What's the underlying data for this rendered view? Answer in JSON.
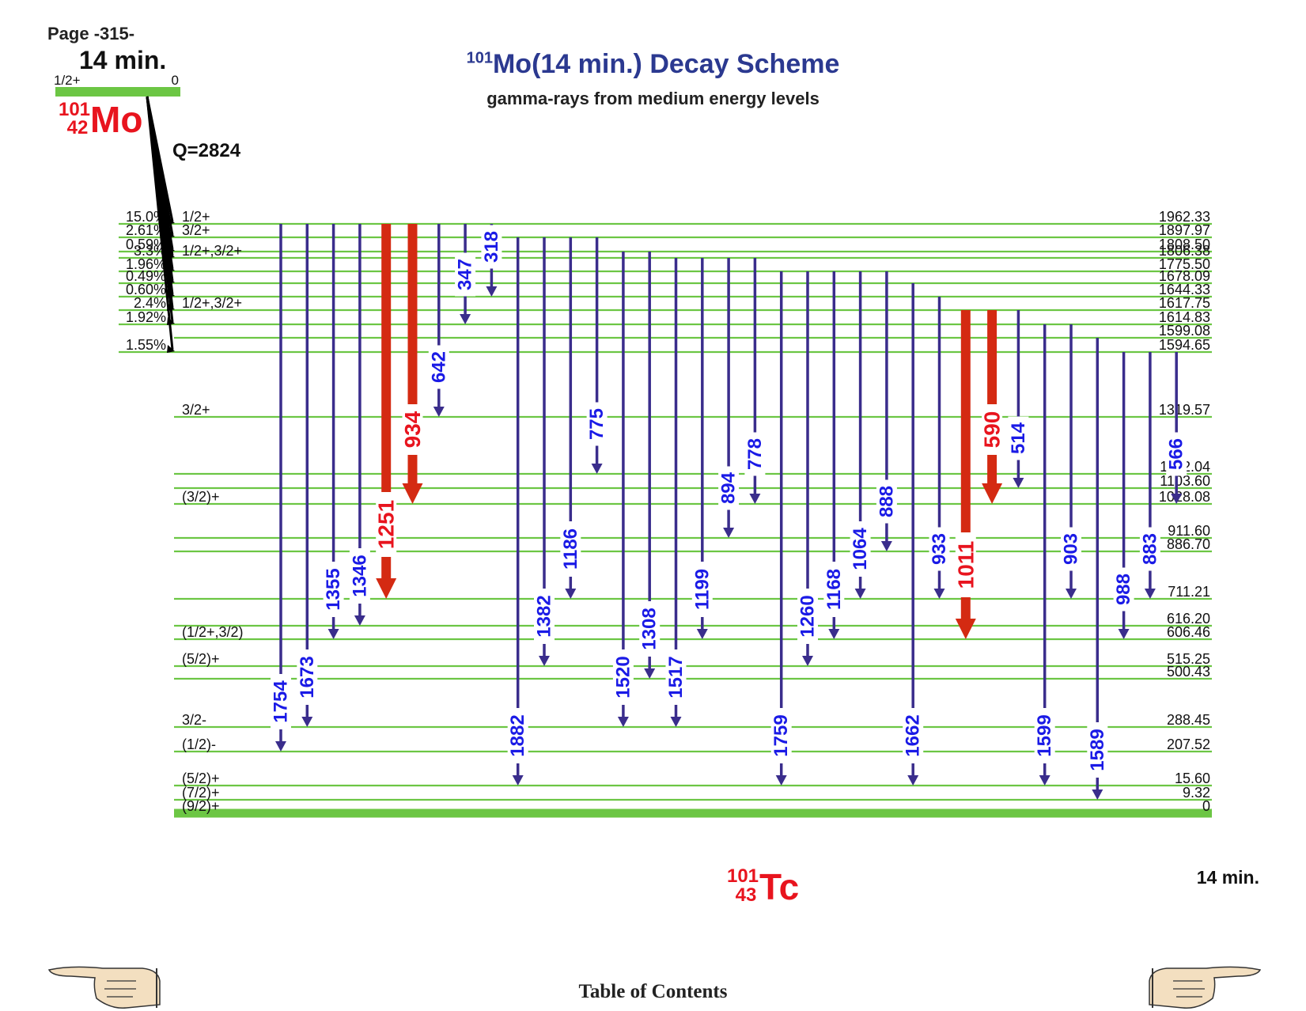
{
  "page_label": "Page -315-",
  "title": {
    "mass_number": "101",
    "text": "Mo(14 min.) Decay Scheme",
    "subtitle": "gamma-rays from medium energy levels"
  },
  "parent": {
    "halflife": "14 min.",
    "spin": "1/2+",
    "energy": "0",
    "mass": "101",
    "Z": "42",
    "symbol": "Mo",
    "q_value": "Q=2824"
  },
  "daughter": {
    "mass": "101",
    "Z": "43",
    "symbol": "Tc",
    "halflife": "14 min."
  },
  "levels": [
    {
      "energy": "1962.33",
      "spin": "1/2+",
      "beta": "15.0%"
    },
    {
      "energy": "1897.97",
      "spin": "3/2+",
      "beta": "2.61%"
    },
    {
      "energy": "1808.50",
      "spin": "",
      "beta": "0.59%"
    },
    {
      "energy": "1806.38",
      "spin": "1/2+,3/2+",
      "beta": "3.3%"
    },
    {
      "energy": "1775.50",
      "spin": "",
      "beta": "1.96%"
    },
    {
      "energy": "1678.09",
      "spin": "",
      "beta": "0.49%"
    },
    {
      "energy": "1644.33",
      "spin": "",
      "beta": "0.60%"
    },
    {
      "energy": "1617.75",
      "spin": "1/2+,3/2+",
      "beta": "2.4%"
    },
    {
      "energy": "1614.83",
      "spin": "",
      "beta": "1.92%"
    },
    {
      "energy": "1599.08",
      "spin": "",
      "beta": ""
    },
    {
      "energy": "1594.65",
      "spin": "",
      "beta": "1.55%"
    },
    {
      "energy": "1319.57",
      "spin": "3/2+",
      "beta": ""
    },
    {
      "energy": "1122.04",
      "spin": "",
      "beta": ""
    },
    {
      "energy": "1103.60",
      "spin": "",
      "beta": ""
    },
    {
      "energy": "1028.08",
      "spin": "(3/2)+",
      "beta": ""
    },
    {
      "energy": "911.60",
      "spin": "",
      "beta": ""
    },
    {
      "energy": "886.70",
      "spin": "",
      "beta": ""
    },
    {
      "energy": "711.21",
      "spin": "",
      "beta": ""
    },
    {
      "energy": "616.20",
      "spin": "",
      "beta": ""
    },
    {
      "energy": "606.46",
      "spin": "(1/2+,3/2)",
      "beta": ""
    },
    {
      "energy": "515.25",
      "spin": "(5/2)+",
      "beta": ""
    },
    {
      "energy": "500.43",
      "spin": "",
      "beta": ""
    },
    {
      "energy": "288.45",
      "spin": "3/2-",
      "beta": ""
    },
    {
      "energy": "207.52",
      "spin": "(1/2)-",
      "beta": ""
    },
    {
      "energy": "15.60",
      "spin": "(5/2)+",
      "beta": ""
    },
    {
      "energy": "9.32",
      "spin": "(7/2)+",
      "beta": ""
    },
    {
      "energy": "0",
      "spin": "(9/2)+",
      "beta": ""
    }
  ],
  "gammas": [
    {
      "energy": "1754",
      "from": 0,
      "to": 23,
      "strong": false
    },
    {
      "energy": "1673",
      "from": 0,
      "to": 22,
      "strong": false
    },
    {
      "energy": "1355",
      "from": 0,
      "to": 19,
      "strong": false
    },
    {
      "energy": "1346",
      "from": 0,
      "to": 18,
      "strong": false
    },
    {
      "energy": "1251",
      "from": 0,
      "to": 17,
      "strong": true
    },
    {
      "energy": "934",
      "from": 0,
      "to": 14,
      "strong": true
    },
    {
      "energy": "642",
      "from": 0,
      "to": 11,
      "strong": false
    },
    {
      "energy": "347",
      "from": 0,
      "to": 8,
      "strong": false
    },
    {
      "energy": "318",
      "from": 0,
      "to": 6,
      "strong": false
    },
    {
      "energy": "1882",
      "from": 1,
      "to": 24,
      "strong": false
    },
    {
      "energy": "1382",
      "from": 1,
      "to": 20,
      "strong": false
    },
    {
      "energy": "1186",
      "from": 1,
      "to": 17,
      "strong": false
    },
    {
      "energy": "775",
      "from": 1,
      "to": 12,
      "strong": false
    },
    {
      "energy": "1520",
      "from": 2,
      "to": 22,
      "strong": false
    },
    {
      "energy": "1308",
      "from": 2,
      "to": 21,
      "strong": false
    },
    {
      "energy": "1517",
      "from": 3,
      "to": 22,
      "strong": false
    },
    {
      "energy": "1199",
      "from": 3,
      "to": 19,
      "strong": false
    },
    {
      "energy": "894",
      "from": 3,
      "to": 15,
      "strong": false
    },
    {
      "energy": "778",
      "from": 3,
      "to": 14,
      "strong": false
    },
    {
      "energy": "1759",
      "from": 4,
      "to": 24,
      "strong": false
    },
    {
      "energy": "1260",
      "from": 4,
      "to": 20,
      "strong": false
    },
    {
      "energy": "1168",
      "from": 4,
      "to": 19,
      "strong": false
    },
    {
      "energy": "1064",
      "from": 4,
      "to": 17,
      "strong": false
    },
    {
      "energy": "888",
      "from": 4,
      "to": 16,
      "strong": false
    },
    {
      "energy": "1662",
      "from": 5,
      "to": 24,
      "strong": false
    },
    {
      "energy": "933",
      "from": 6,
      "to": 17,
      "strong": false
    },
    {
      "energy": "1011",
      "from": 7,
      "to": 19,
      "strong": true
    },
    {
      "energy": "590",
      "from": 7,
      "to": 14,
      "strong": true
    },
    {
      "energy": "514",
      "from": 7,
      "to": 13,
      "strong": false
    },
    {
      "energy": "1599",
      "from": 8,
      "to": 24,
      "strong": false
    },
    {
      "energy": "903",
      "from": 8,
      "to": 17,
      "strong": false
    },
    {
      "energy": "1589",
      "from": 9,
      "to": 25,
      "strong": false
    },
    {
      "energy": "988",
      "from": 10,
      "to": 19,
      "strong": false
    },
    {
      "energy": "883",
      "from": 10,
      "to": 17,
      "strong": false
    },
    {
      "energy": "566",
      "from": 10,
      "to": 14,
      "strong": false
    }
  ],
  "colors": {
    "level": "#6cc644",
    "gamma": "#3a2d8c",
    "gamma_strong": "#d42a12",
    "gamma_label": "#1a1ae6",
    "gamma_label_strong": "#e8141e",
    "nucleus": "#e8141e",
    "title": "#2b3990"
  },
  "navigation": {
    "toc": "Table of Contents",
    "prev_icon": "pointing-hand-left-icon",
    "next_icon": "pointing-hand-right-icon"
  }
}
